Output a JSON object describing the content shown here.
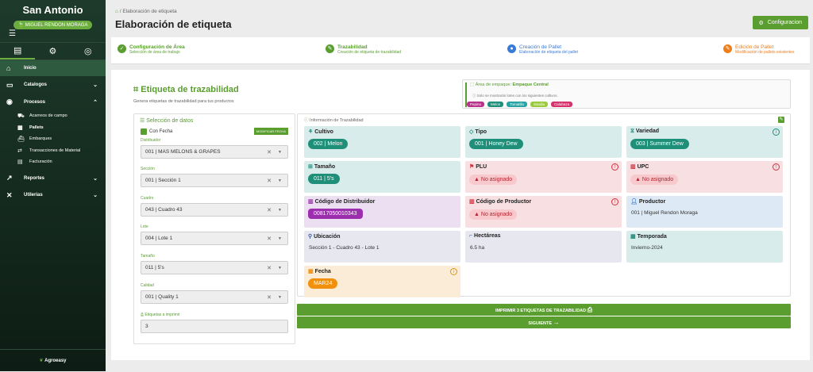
{
  "sidebar": {
    "brand": "San Antonio",
    "user": "MIGUEL RENDON MORAGA",
    "menu_icon": "menu-icon",
    "footer": "Agroeasy",
    "items": [
      {
        "label": "Inicio",
        "icon": "home-icon",
        "active": true
      },
      {
        "label": "Catalogos",
        "icon": "folder-icon",
        "chevron": "chevron-down-icon"
      },
      {
        "label": "Procesos",
        "icon": "gear-icon",
        "chevron": "chevron-up-icon"
      },
      {
        "label": "Reportes",
        "icon": "chart-icon",
        "chevron": "chevron-down-icon"
      },
      {
        "label": "Utilerias",
        "icon": "tools-icon",
        "chevron": "chevron-down-icon"
      }
    ],
    "subitems": [
      {
        "label": "Acarreos de campo",
        "icon": "truck-icon"
      },
      {
        "label": "Pallets",
        "icon": "pallet-icon",
        "bold": true
      },
      {
        "label": "Embarques",
        "icon": "ship-icon"
      },
      {
        "label": "Transacciones de Material",
        "icon": "transfer-icon"
      },
      {
        "label": "Facturación",
        "icon": "invoice-icon"
      }
    ]
  },
  "breadcrumb": {
    "home_icon": "home-icon",
    "sep": "/",
    "current": "Elaboración de etiqueta"
  },
  "page_title": "Elaboración de etiqueta",
  "config_button": "Configuracion",
  "steps": [
    {
      "title": "Configuración de Área",
      "sub": "Selección de área de trabajo",
      "color": "#5a9e2f",
      "mark": "✓"
    },
    {
      "title": "Trazabilidad",
      "sub": "Creación de etiqueta de trazabilidad",
      "color": "#5a9e2f",
      "mark": "✎"
    },
    {
      "title": "Creación de Pallet",
      "sub": "Elaboración de etiqueta del pallet",
      "color": "#3a7bd5",
      "mark": "●"
    },
    {
      "title": "Edición de Pallet",
      "sub": "Modificación de pallets existentes",
      "color": "#ef7d1a",
      "mark": "✎"
    }
  ],
  "section": {
    "title": "Etiqueta de trazabilidad",
    "subtitle": "Genera etiquetas de trazabilidad para tus productos"
  },
  "area": {
    "label": "Área de empaque:",
    "value": "Empaque Central",
    "note": "Solo se mostrarán lotes con los siguientes cultivos.",
    "crops": [
      {
        "name": "Pepino",
        "color": "#b8338a"
      },
      {
        "name": "Melon",
        "color": "#1f8f7a"
      },
      {
        "name": "Tomatillo",
        "color": "#2aa3a3"
      },
      {
        "name": "Sandia",
        "color": "#9acb3c"
      },
      {
        "name": "Calabaza",
        "color": "#d6336c"
      }
    ]
  },
  "selection": {
    "title": "Selección de datos",
    "checkbox": "Con Fecha",
    "modify": "MODIFICAR FECHA",
    "fields": [
      {
        "label": "Distribuidor",
        "value": "001 | MAS MELONS & GRAPES"
      },
      {
        "label": "Sección",
        "value": "001 | Sección 1"
      },
      {
        "label": "Cuadro",
        "value": "043 | Cuadro 43"
      },
      {
        "label": "Lote",
        "value": "004 | Lote 1"
      },
      {
        "label": "Tamaño",
        "value": "011 | 5's"
      },
      {
        "label": "Calidad",
        "value": "001 | Quality 1"
      }
    ],
    "qty_label": "Etiquetas a imprimir",
    "qty_value": "3"
  },
  "info": {
    "title": "Información de Trazabilidad",
    "cells": [
      {
        "title": "Cultivo",
        "kind": "pill",
        "value": "002 | Melon",
        "bg": "teal",
        "pill": "#1f8f7a"
      },
      {
        "title": "Tipo",
        "kind": "pill",
        "value": "001 | Honey Dew",
        "bg": "teal",
        "pill": "#1f8f7a"
      },
      {
        "title": "Variedad",
        "kind": "pill",
        "value": "003 | Summer Dew",
        "bg": "teal",
        "pill": "#1f8f7a",
        "tip": "#1f8f7a"
      },
      {
        "title": "Tamaño",
        "kind": "pill",
        "value": "011 | 5's",
        "bg": "teal",
        "pill": "#1f8f7a"
      },
      {
        "title": "PLU",
        "kind": "na",
        "value": "No asignado",
        "bg": "red",
        "tip": "#d0323f"
      },
      {
        "title": "UPC",
        "kind": "na",
        "value": "No asignado",
        "bg": "red",
        "tip": "#d0323f"
      },
      {
        "title": "Código de Distribuidor",
        "kind": "pill",
        "value": "00817050010343",
        "bg": "purp",
        "pill": "#9b2fae"
      },
      {
        "title": "Código de Productor",
        "kind": "na",
        "value": "No asignado",
        "bg": "red",
        "tip": "#d0323f"
      },
      {
        "title": "Productor",
        "kind": "text",
        "value": "001 | Miguel Rendon Moraga",
        "bg": "lblue"
      },
      {
        "title": "Ubicación",
        "kind": "text",
        "value": "Sección 1 - Cuadro 43 - Lote 1",
        "bg": "gray"
      },
      {
        "title": "Hectáreas",
        "kind": "text",
        "value": "6.5 ha",
        "bg": "gray"
      },
      {
        "title": "Temporada",
        "kind": "text",
        "value": "Invierno-2024",
        "bg": "teal"
      },
      {
        "title": "Fecha",
        "kind": "pill",
        "value": "MAR24",
        "bg": "org",
        "pill": "#f0900d",
        "tip": "#d79a12"
      }
    ]
  },
  "print_button": "IMPRIMIR 3 ETIQUETAS DE TRAZABILIDAD",
  "next_button": "SIGUIENTE"
}
